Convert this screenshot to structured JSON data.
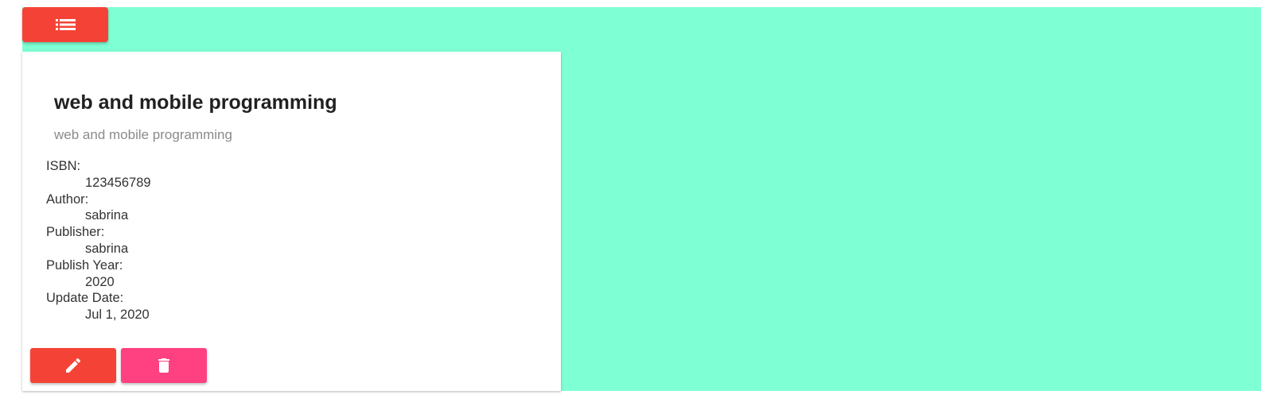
{
  "header": {
    "menu_icon": "list-icon",
    "accent_color": "#f44336",
    "background_color": "#7fffd4"
  },
  "book": {
    "title": "web and mobile programming",
    "subtitle": "web and mobile programming",
    "details": [
      {
        "label": "ISBN:",
        "value": "123456789"
      },
      {
        "label": "Author:",
        "value": "sabrina"
      },
      {
        "label": "Publisher:",
        "value": "sabrina"
      },
      {
        "label": "Publish Year:",
        "value": "2020"
      },
      {
        "label": "Update Date:",
        "value": "Jul 1, 2020"
      }
    ]
  },
  "actions": {
    "edit_icon": "pencil-icon",
    "delete_icon": "trash-icon",
    "edit_color": "#f44336",
    "delete_color": "#ff4081"
  }
}
